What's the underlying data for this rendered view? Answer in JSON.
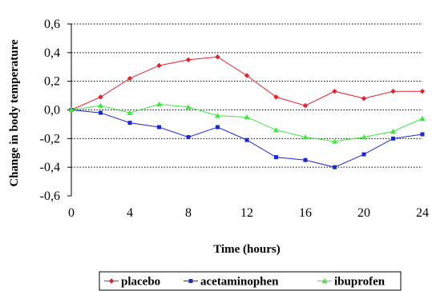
{
  "chart_data": {
    "type": "line",
    "title": "",
    "xlabel": "Time (hours)",
    "ylabel": "Change in body temperature",
    "xlim": [
      0,
      24
    ],
    "ylim": [
      -0.6,
      0.6
    ],
    "x_ticks": [
      0,
      4,
      8,
      12,
      16,
      20,
      24
    ],
    "x_tick_labels": [
      "0",
      "4",
      "8",
      "12",
      "16",
      "20",
      "24"
    ],
    "y_ticks": [
      0.6,
      0.4,
      0.2,
      0.0,
      -0.2,
      -0.4,
      -0.6
    ],
    "y_tick_labels": [
      "0,6",
      "0,4",
      "0,2",
      "0,0",
      "-0,2",
      "-0,4",
      "-0,6"
    ],
    "grid": "horizontal dotted",
    "legend_position": "bottom",
    "x": [
      0,
      2,
      4,
      6,
      8,
      10,
      12,
      14,
      16,
      18,
      20,
      22,
      24
    ],
    "series": [
      {
        "name": "placebo",
        "color": "#e8202a",
        "marker": "diamond",
        "values": [
          0.0,
          0.09,
          0.22,
          0.31,
          0.35,
          0.37,
          0.24,
          0.09,
          0.03,
          0.13,
          0.08,
          0.13,
          0.13
        ]
      },
      {
        "name": "acetaminophen",
        "color": "#1a28d8",
        "marker": "square",
        "values": [
          0.0,
          -0.02,
          -0.09,
          -0.12,
          -0.19,
          -0.12,
          -0.21,
          -0.33,
          -0.35,
          -0.4,
          -0.31,
          -0.2,
          -0.17
        ]
      },
      {
        "name": "ibuprofen",
        "color": "#3ee83e",
        "marker": "triangle",
        "values": [
          0.0,
          0.03,
          -0.02,
          0.04,
          0.02,
          -0.04,
          -0.05,
          -0.14,
          -0.19,
          -0.22,
          -0.19,
          -0.15,
          -0.06
        ]
      }
    ]
  }
}
